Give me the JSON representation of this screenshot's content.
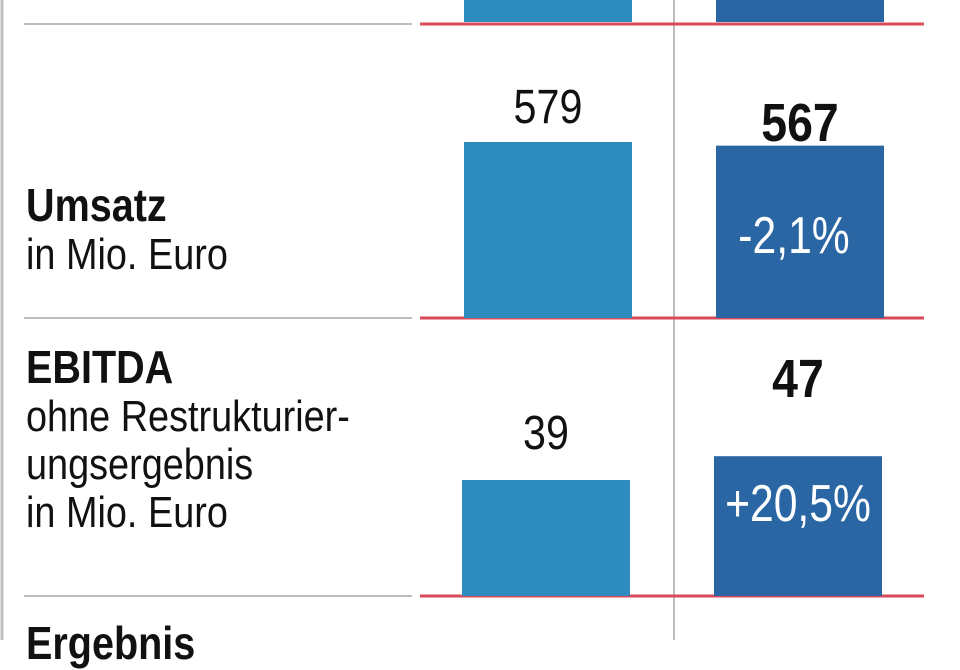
{
  "chart_data": {
    "type": "bar",
    "categories": [
      "Umsatz",
      "EBITDA"
    ],
    "rows": [
      {
        "name": "Umsatz",
        "sub": [
          "in Mio. Euro"
        ],
        "prev_value": 579,
        "curr_value": 567,
        "prev_label": "579",
        "curr_label": "567",
        "change_label": "-2,1%"
      },
      {
        "name": "EBITDA",
        "sub": [
          "ohne Restrukturier-",
          "ungsergebnis",
          "in Mio. Euro"
        ],
        "prev_value": 39,
        "curr_value": 47,
        "prev_label": "39",
        "curr_label": "47",
        "change_label": "+20,5%"
      }
    ],
    "next_row_label": "Ergebnis",
    "colors": {
      "prev_bar": "#2e8bc0",
      "curr_bar": "#2a66a3",
      "baseline": "#d94a5a",
      "divider": "#bdbdbd"
    }
  }
}
